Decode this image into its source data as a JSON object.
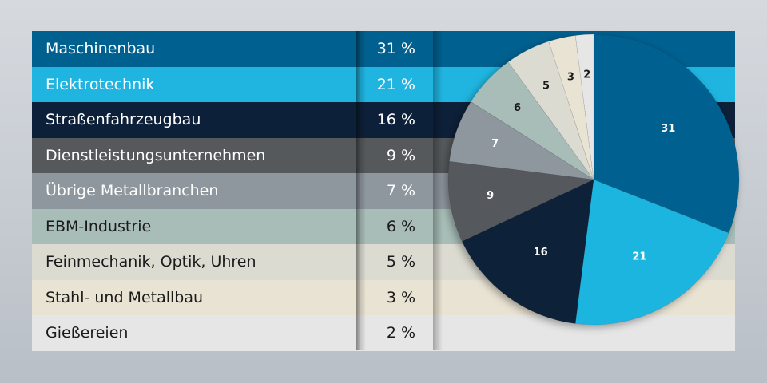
{
  "chart_data": {
    "type": "pie",
    "categories": [
      "Maschinenbau",
      "Elektrotechnik",
      "Straßenfahrzeugbau",
      "Dienstleistungsunternehmen",
      "Übrige Metallbranchen",
      "EBM-Industrie",
      "Feinmechanik, Optik, Uhren",
      "Stahl- und Metallbau",
      "Gießereien"
    ],
    "values": [
      31,
      21,
      16,
      9,
      7,
      6,
      5,
      3,
      2
    ],
    "percent_labels": [
      "31 %",
      "21 %",
      "16 %",
      "9 %",
      "7 %",
      "6 %",
      "5 %",
      "3 %",
      "2 %"
    ],
    "slice_labels": [
      "31",
      "21",
      "16",
      "9",
      "7",
      "6",
      "5",
      "3",
      "2"
    ],
    "colors": [
      "#00608f",
      "#1fb5e0",
      "#0d2039",
      "#55595c",
      "#8e979e",
      "#a8bdb7",
      "#dcdbd1",
      "#e9e3d3",
      "#e6e6e6"
    ],
    "text_colors": [
      "#ffffff",
      "#ffffff",
      "#ffffff",
      "#ffffff",
      "#ffffff",
      "#1a1a1a",
      "#1a1a1a",
      "#1a1a1a",
      "#1a1a1a"
    ],
    "slice_label_colors": [
      "#ffffff",
      "#ffffff",
      "#ffffff",
      "#ffffff",
      "#ffffff",
      "#1a1a1a",
      "#1a1a1a",
      "#1a1a1a",
      "#1a1a1a"
    ]
  }
}
